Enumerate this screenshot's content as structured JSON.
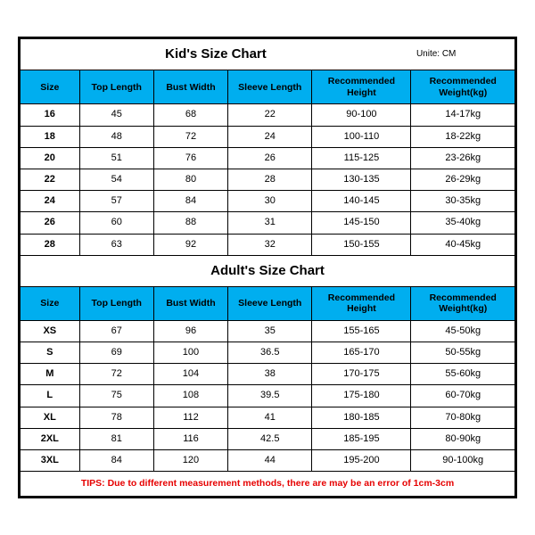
{
  "unite_label": "Unite: CM",
  "columns": [
    "Size",
    "Top Length",
    "Bust Width",
    "Sleeve Length",
    "Recommended Height",
    "Recommended Weight(kg)"
  ],
  "kids": {
    "title": "Kid's Size Chart",
    "rows": [
      [
        "16",
        "45",
        "68",
        "22",
        "90-100",
        "14-17kg"
      ],
      [
        "18",
        "48",
        "72",
        "24",
        "100-110",
        "18-22kg"
      ],
      [
        "20",
        "51",
        "76",
        "26",
        "115-125",
        "23-26kg"
      ],
      [
        "22",
        "54",
        "80",
        "28",
        "130-135",
        "26-29kg"
      ],
      [
        "24",
        "57",
        "84",
        "30",
        "140-145",
        "30-35kg"
      ],
      [
        "26",
        "60",
        "88",
        "31",
        "145-150",
        "35-40kg"
      ],
      [
        "28",
        "63",
        "92",
        "32",
        "150-155",
        "40-45kg"
      ]
    ]
  },
  "adults": {
    "title": "Adult's Size Chart",
    "rows": [
      [
        "XS",
        "67",
        "96",
        "35",
        "155-165",
        "45-50kg"
      ],
      [
        "S",
        "69",
        "100",
        "36.5",
        "165-170",
        "50-55kg"
      ],
      [
        "M",
        "72",
        "104",
        "38",
        "170-175",
        "55-60kg"
      ],
      [
        "L",
        "75",
        "108",
        "39.5",
        "175-180",
        "60-70kg"
      ],
      [
        "XL",
        "78",
        "112",
        "41",
        "180-185",
        "70-80kg"
      ],
      [
        "2XL",
        "81",
        "116",
        "42.5",
        "185-195",
        "80-90kg"
      ],
      [
        "3XL",
        "84",
        "120",
        "44",
        "195-200",
        "90-100kg"
      ]
    ]
  },
  "tips": "TIPS: Due to different measurement methods, there are may be an error of 1cm-3cm",
  "colors": {
    "header_bg": "#00aeef",
    "border": "#000000",
    "tips_text": "#e60000",
    "background": "#ffffff"
  }
}
